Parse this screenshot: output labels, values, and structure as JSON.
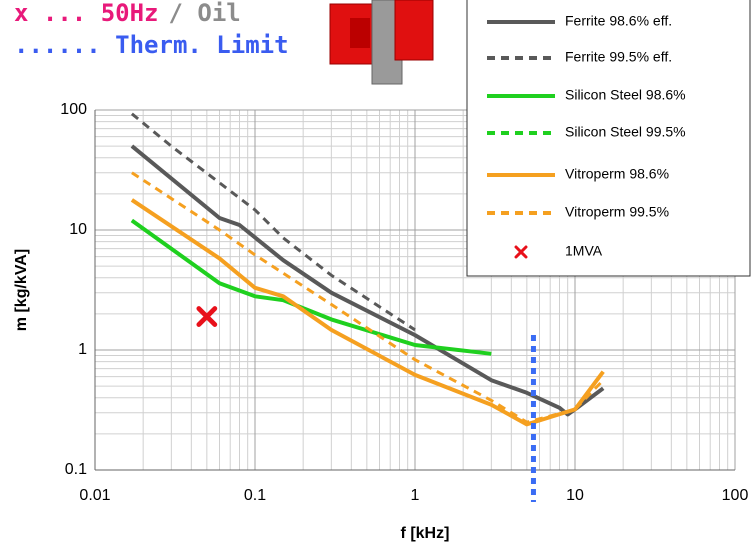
{
  "chart_data": {
    "type": "line",
    "xlabel": "f [kHz]",
    "ylabel": "m [kg/kVA]",
    "log_x": true,
    "log_y": true,
    "grid": true,
    "xlim": [
      0.01,
      100
    ],
    "ylim": [
      0.1,
      100
    ],
    "xticks": [
      0.01,
      0.1,
      1,
      10,
      100
    ],
    "yticks": [
      0.1,
      1,
      10,
      100
    ],
    "annotations": [
      {
        "text": "x ... 50Hz",
        "color": "#e8197a"
      },
      {
        "text": "/ Oil",
        "color": "#8c8c8c"
      },
      {
        "text": "...... Therm. Limit",
        "color": "#3a5cf0"
      }
    ],
    "thermal_limit": {
      "x": 5.5,
      "color": "#3a6cf4"
    },
    "series": [
      {
        "name": "Ferrite 98.6% eff.",
        "color": "#595959",
        "dash": false,
        "x": [
          0.017,
          0.06,
          0.08,
          0.15,
          0.3,
          1,
          3,
          5,
          8,
          9,
          10,
          15
        ],
        "values": [
          50,
          12.6,
          11,
          5.6,
          3,
          1.33,
          0.56,
          0.44,
          0.33,
          0.29,
          0.32,
          0.48
        ]
      },
      {
        "name": "Ferrite 99.5% eff.",
        "color": "#595959",
        "dash": true,
        "x": [
          0.017,
          0.03,
          0.1,
          0.15,
          0.3,
          1
        ],
        "values": [
          93,
          50,
          14.7,
          8.6,
          4.2,
          1.47
        ]
      },
      {
        "name": "Silicon Steel 98.6%",
        "color": "#1fd01f",
        "dash": false,
        "x": [
          0.017,
          0.06,
          0.1,
          0.15,
          0.3,
          1,
          3
        ],
        "values": [
          12,
          3.6,
          2.8,
          2.6,
          1.8,
          1.1,
          0.93
        ]
      },
      {
        "name": "Silicon Steel 99.5%",
        "color": "#1fd01f",
        "dash": true,
        "x": [
          0.017,
          0.06,
          0.1,
          0.15,
          0.3,
          1
        ],
        "values": [
          12,
          3.6,
          2.8,
          2.6,
          1.8,
          1.1
        ]
      },
      {
        "name": "Vitroperm 98.6%",
        "color": "#f5a020",
        "dash": false,
        "x": [
          0.017,
          0.06,
          0.1,
          0.15,
          0.3,
          1,
          3,
          5,
          10,
          15
        ],
        "values": [
          17.8,
          5.8,
          3.3,
          2.8,
          1.47,
          0.62,
          0.35,
          0.24,
          0.32,
          0.66
        ]
      },
      {
        "name": "Vitroperm 99.5%",
        "color": "#f5a020",
        "dash": true,
        "x": [
          0.017,
          0.06,
          0.1,
          0.3,
          1,
          3,
          5,
          10,
          15
        ],
        "values": [
          30,
          10,
          6.2,
          2.4,
          0.83,
          0.38,
          0.25,
          0.32,
          0.56
        ]
      }
    ],
    "markers": [
      {
        "name": "1MVA",
        "color": "#e8101a",
        "x": [
          0.05
        ],
        "values": [
          1.9
        ]
      }
    ]
  }
}
